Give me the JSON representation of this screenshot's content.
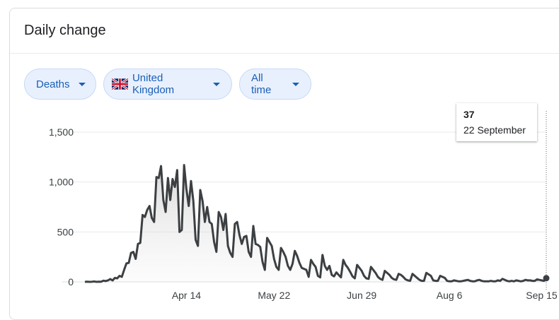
{
  "card": {
    "title": "Daily change"
  },
  "filters": {
    "metric": {
      "label": "Deaths"
    },
    "region": {
      "label": "United Kingdom",
      "flag_icon": "uk-flag-icon"
    },
    "range": {
      "label": "All time"
    }
  },
  "tooltip": {
    "value": "37",
    "date": "22 September"
  },
  "colors": {
    "line": "#3c4043",
    "grid": "#e8eaed",
    "chip_bg": "#e8f0fe",
    "chip_text": "#1a5fb4"
  },
  "chart_data": {
    "type": "area",
    "title": "",
    "xlabel": "",
    "ylabel": "",
    "ylim": [
      0,
      1500
    ],
    "yticks": [
      0,
      500,
      1000,
      1500
    ],
    "ytick_labels": [
      "0",
      "500",
      "1,000",
      "1,500"
    ],
    "xtick_labels": [
      {
        "label": "Apr 14",
        "day": 44
      },
      {
        "label": "May 22",
        "day": 82
      },
      {
        "label": "Jun 29",
        "day": 120
      },
      {
        "label": "Aug 6",
        "day": 158
      },
      {
        "label": "Sep 15",
        "day": 198
      }
    ],
    "x_start": "Mar 1",
    "values": [
      0,
      2,
      0,
      1,
      4,
      0,
      2,
      1,
      12,
      8,
      15,
      28,
      14,
      40,
      35,
      60,
      50,
      120,
      185,
      190,
      290,
      300,
      230,
      380,
      390,
      670,
      650,
      720,
      760,
      640,
      600,
      1050,
      1040,
      1160,
      820,
      700,
      1040,
      820,
      1030,
      950,
      1120,
      500,
      520,
      1170,
      930,
      760,
      1010,
      810,
      420,
      360,
      920,
      810,
      600,
      750,
      600,
      580,
      400,
      300,
      700,
      650,
      520,
      680,
      360,
      290,
      250,
      580,
      600,
      470,
      380,
      450,
      460,
      300,
      250,
      560,
      380,
      370,
      350,
      200,
      120,
      440,
      400,
      360,
      230,
      150,
      120,
      340,
      300,
      250,
      160,
      120,
      180,
      310,
      260,
      190,
      140,
      130,
      120,
      50,
      220,
      180,
      150,
      60,
      45,
      270,
      160,
      120,
      160,
      70,
      55,
      95,
      70,
      45,
      220,
      170,
      140,
      100,
      55,
      35,
      170,
      140,
      110,
      60,
      35,
      30,
      150,
      120,
      90,
      50,
      30,
      20,
      110,
      90,
      70,
      40,
      25,
      20,
      80,
      70,
      50,
      25,
      15,
      10,
      80,
      60,
      40,
      20,
      10,
      10,
      90,
      75,
      60,
      15,
      10,
      10,
      60,
      50,
      40,
      10,
      5,
      5,
      15,
      10,
      5,
      5,
      10,
      15,
      20,
      10,
      5,
      5,
      15,
      20,
      10,
      5,
      5,
      5,
      10,
      5,
      5,
      15,
      10,
      30,
      20,
      10,
      5,
      10,
      5,
      15,
      10,
      5,
      10,
      20,
      15,
      15,
      10,
      10,
      25,
      20,
      15,
      10,
      37
    ]
  }
}
